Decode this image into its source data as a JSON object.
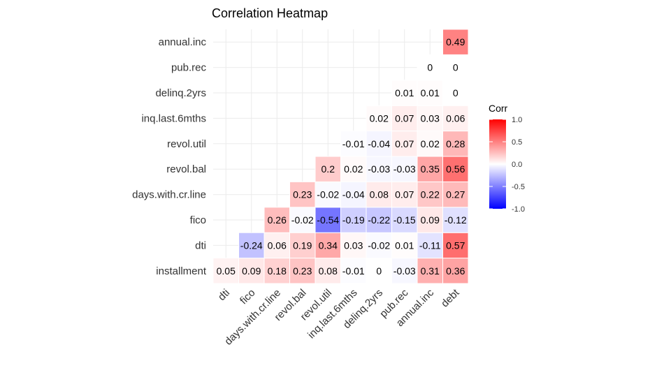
{
  "chart_data": {
    "type": "heatmap",
    "title": "Correlation Heatmap",
    "xlabel": "",
    "ylabel": "",
    "x_categories": [
      "dti",
      "fico",
      "days.with.cr.line",
      "revol.bal",
      "revol.util",
      "inq.last.6mths",
      "delinq.2yrs",
      "pub.rec",
      "annual.inc",
      "debt"
    ],
    "y_categories": [
      "installment",
      "dti",
      "fico",
      "days.with.cr.line",
      "revol.bal",
      "revol.util",
      "inq.last.6mths",
      "delinq.2yrs",
      "pub.rec",
      "annual.inc"
    ],
    "cells": [
      {
        "x": "dti",
        "y": "installment",
        "value": 0.05,
        "label": "0.05"
      },
      {
        "x": "fico",
        "y": "installment",
        "value": 0.09,
        "label": "0.09"
      },
      {
        "x": "days.with.cr.line",
        "y": "installment",
        "value": 0.18,
        "label": "0.18"
      },
      {
        "x": "revol.bal",
        "y": "installment",
        "value": 0.23,
        "label": "0.23"
      },
      {
        "x": "revol.util",
        "y": "installment",
        "value": 0.08,
        "label": "0.08"
      },
      {
        "x": "inq.last.6mths",
        "y": "installment",
        "value": -0.01,
        "label": "-0.01"
      },
      {
        "x": "delinq.2yrs",
        "y": "installment",
        "value": 0,
        "label": "0"
      },
      {
        "x": "pub.rec",
        "y": "installment",
        "value": -0.03,
        "label": "-0.03"
      },
      {
        "x": "annual.inc",
        "y": "installment",
        "value": 0.31,
        "label": "0.31"
      },
      {
        "x": "debt",
        "y": "installment",
        "value": 0.36,
        "label": "0.36"
      },
      {
        "x": "fico",
        "y": "dti",
        "value": -0.24,
        "label": "-0.24"
      },
      {
        "x": "days.with.cr.line",
        "y": "dti",
        "value": 0.06,
        "label": "0.06"
      },
      {
        "x": "revol.bal",
        "y": "dti",
        "value": 0.19,
        "label": "0.19"
      },
      {
        "x": "revol.util",
        "y": "dti",
        "value": 0.34,
        "label": "0.34"
      },
      {
        "x": "inq.last.6mths",
        "y": "dti",
        "value": 0.03,
        "label": "0.03"
      },
      {
        "x": "delinq.2yrs",
        "y": "dti",
        "value": -0.02,
        "label": "-0.02"
      },
      {
        "x": "pub.rec",
        "y": "dti",
        "value": 0.01,
        "label": "0.01"
      },
      {
        "x": "annual.inc",
        "y": "dti",
        "value": -0.11,
        "label": "-0.11"
      },
      {
        "x": "debt",
        "y": "dti",
        "value": 0.57,
        "label": "0.57"
      },
      {
        "x": "days.with.cr.line",
        "y": "fico",
        "value": 0.26,
        "label": "0.26"
      },
      {
        "x": "revol.bal",
        "y": "fico",
        "value": -0.02,
        "label": "-0.02"
      },
      {
        "x": "revol.util",
        "y": "fico",
        "value": -0.54,
        "label": "-0.54"
      },
      {
        "x": "inq.last.6mths",
        "y": "fico",
        "value": -0.19,
        "label": "-0.19"
      },
      {
        "x": "delinq.2yrs",
        "y": "fico",
        "value": -0.22,
        "label": "-0.22"
      },
      {
        "x": "pub.rec",
        "y": "fico",
        "value": -0.15,
        "label": "-0.15"
      },
      {
        "x": "annual.inc",
        "y": "fico",
        "value": 0.09,
        "label": "0.09"
      },
      {
        "x": "debt",
        "y": "fico",
        "value": -0.12,
        "label": "-0.12"
      },
      {
        "x": "revol.bal",
        "y": "days.with.cr.line",
        "value": 0.23,
        "label": "0.23"
      },
      {
        "x": "revol.util",
        "y": "days.with.cr.line",
        "value": -0.02,
        "label": "-0.02"
      },
      {
        "x": "inq.last.6mths",
        "y": "days.with.cr.line",
        "value": -0.04,
        "label": "-0.04"
      },
      {
        "x": "delinq.2yrs",
        "y": "days.with.cr.line",
        "value": 0.08,
        "label": "0.08"
      },
      {
        "x": "pub.rec",
        "y": "days.with.cr.line",
        "value": 0.07,
        "label": "0.07"
      },
      {
        "x": "annual.inc",
        "y": "days.with.cr.line",
        "value": 0.22,
        "label": "0.22"
      },
      {
        "x": "debt",
        "y": "days.with.cr.line",
        "value": 0.27,
        "label": "0.27"
      },
      {
        "x": "revol.util",
        "y": "revol.bal",
        "value": 0.2,
        "label": "0.2"
      },
      {
        "x": "inq.last.6mths",
        "y": "revol.bal",
        "value": 0.02,
        "label": "0.02"
      },
      {
        "x": "delinq.2yrs",
        "y": "revol.bal",
        "value": -0.03,
        "label": "-0.03"
      },
      {
        "x": "pub.rec",
        "y": "revol.bal",
        "value": -0.03,
        "label": "-0.03"
      },
      {
        "x": "annual.inc",
        "y": "revol.bal",
        "value": 0.35,
        "label": "0.35"
      },
      {
        "x": "debt",
        "y": "revol.bal",
        "value": 0.56,
        "label": "0.56"
      },
      {
        "x": "inq.last.6mths",
        "y": "revol.util",
        "value": -0.01,
        "label": "-0.01"
      },
      {
        "x": "delinq.2yrs",
        "y": "revol.util",
        "value": -0.04,
        "label": "-0.04"
      },
      {
        "x": "pub.rec",
        "y": "revol.util",
        "value": 0.07,
        "label": "0.07"
      },
      {
        "x": "annual.inc",
        "y": "revol.util",
        "value": 0.02,
        "label": "0.02"
      },
      {
        "x": "debt",
        "y": "revol.util",
        "value": 0.28,
        "label": "0.28"
      },
      {
        "x": "delinq.2yrs",
        "y": "inq.last.6mths",
        "value": 0.02,
        "label": "0.02"
      },
      {
        "x": "pub.rec",
        "y": "inq.last.6mths",
        "value": 0.07,
        "label": "0.07"
      },
      {
        "x": "annual.inc",
        "y": "inq.last.6mths",
        "value": 0.03,
        "label": "0.03"
      },
      {
        "x": "debt",
        "y": "inq.last.6mths",
        "value": 0.06,
        "label": "0.06"
      },
      {
        "x": "pub.rec",
        "y": "delinq.2yrs",
        "value": 0.01,
        "label": "0.01"
      },
      {
        "x": "annual.inc",
        "y": "delinq.2yrs",
        "value": 0.01,
        "label": "0.01"
      },
      {
        "x": "debt",
        "y": "delinq.2yrs",
        "value": 0,
        "label": "0"
      },
      {
        "x": "annual.inc",
        "y": "pub.rec",
        "value": 0,
        "label": "0"
      },
      {
        "x": "debt",
        "y": "pub.rec",
        "value": 0,
        "label": "0"
      },
      {
        "x": "debt",
        "y": "annual.inc",
        "value": 0.49,
        "label": "0.49"
      }
    ],
    "color_scale": {
      "low": "#0000FF",
      "mid": "#FFFFFF",
      "high": "#FF0000",
      "min": -1,
      "max": 1
    },
    "legend": {
      "title": "Corr",
      "placement": "right",
      "ticks": [
        {
          "value": 1,
          "label": "1.0"
        },
        {
          "value": 0.5,
          "label": "0.5"
        },
        {
          "value": 0,
          "label": "0.0"
        },
        {
          "value": -0.5,
          "label": "-0.5"
        },
        {
          "value": -1,
          "label": "-1.0"
        }
      ]
    },
    "grid": true
  }
}
